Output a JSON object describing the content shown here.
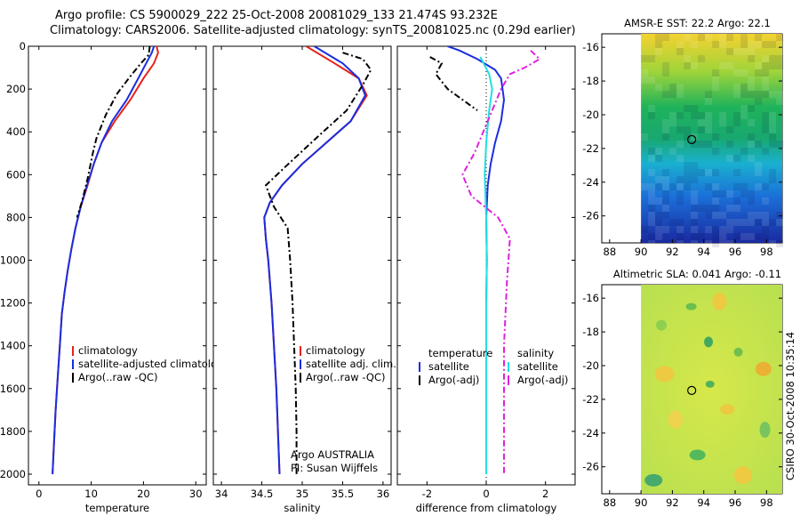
{
  "header": {
    "line1": "Argo profile: CS 5900029_222 25-Oct-2008 20081029_133 21.474S 93.232E",
    "line2": "Climatology: CARS2006. Satellite-adjusted climatology: synTS_20081025.nc (0.29d earlier)"
  },
  "footer_stamp": "CSIRO 30-Oct-2008 10:35:14",
  "credit": {
    "line1": "Argo AUSTRALIA",
    "line2": "PI: Susan Wijffels"
  },
  "colors": {
    "red": "#e8221a",
    "blue": "#1a2ee0",
    "black": "#000000",
    "magenta": "#e020e0",
    "cyan": "#20e0e0"
  },
  "chart_data": [
    {
      "type": "line",
      "xlabel": "temperature",
      "ylabel": "",
      "xlim": [
        -2,
        32
      ],
      "ylim": [
        2050,
        0
      ],
      "xticks": [
        0,
        10,
        20,
        30
      ],
      "yticks": [
        0,
        200,
        400,
        600,
        800,
        1000,
        1200,
        1400,
        1600,
        1800,
        2000
      ],
      "legend": [
        "climatology",
        "satellite-adjusted climatology",
        "Argo(..raw -QC)"
      ],
      "series": [
        {
          "name": "climatology",
          "color": "red",
          "points": [
            [
              22.5,
              0
            ],
            [
              22.8,
              30
            ],
            [
              22,
              80
            ],
            [
              20,
              150
            ],
            [
              17.5,
              250
            ],
            [
              14.5,
              350
            ],
            [
              12,
              450
            ],
            [
              10.5,
              550
            ],
            [
              9.3,
              650
            ],
            [
              8,
              750
            ],
            [
              7,
              850
            ],
            [
              6.2,
              950
            ],
            [
              5.5,
              1050
            ],
            [
              4.9,
              1150
            ],
            [
              4.4,
              1250
            ],
            [
              4,
              1400
            ],
            [
              3.6,
              1550
            ],
            [
              3.2,
              1700
            ],
            [
              2.9,
              1850
            ],
            [
              2.6,
              2000
            ]
          ]
        },
        {
          "name": "satellite-adjusted climatology",
          "color": "blue",
          "points": [
            [
              22,
              0
            ],
            [
              21.6,
              30
            ],
            [
              20.5,
              80
            ],
            [
              19,
              150
            ],
            [
              16.8,
              250
            ],
            [
              14,
              350
            ],
            [
              12,
              450
            ],
            [
              10.5,
              550
            ],
            [
              9.2,
              650
            ],
            [
              8,
              750
            ],
            [
              7,
              850
            ],
            [
              6.2,
              950
            ],
            [
              5.5,
              1050
            ],
            [
              4.9,
              1150
            ],
            [
              4.4,
              1250
            ],
            [
              4,
              1400
            ],
            [
              3.6,
              1550
            ],
            [
              3.2,
              1700
            ],
            [
              2.9,
              1850
            ],
            [
              2.6,
              2000
            ]
          ]
        },
        {
          "name": "Argo(..raw -QC)",
          "color": "black",
          "points": [
            [
              21.2,
              0
            ],
            [
              21,
              40
            ],
            [
              19.5,
              80
            ],
            [
              17.5,
              140
            ],
            [
              15,
              220
            ],
            [
              12.8,
              320
            ],
            [
              11,
              430
            ],
            [
              10.3,
              500
            ],
            [
              9.3,
              620
            ],
            [
              8.3,
              720
            ],
            [
              7.3,
              800
            ]
          ]
        }
      ]
    },
    {
      "type": "line",
      "xlabel": "salinity",
      "xlim": [
        33.9,
        36.1
      ],
      "ylim": [
        2050,
        0
      ],
      "xticks": [
        34,
        34.5,
        35,
        35.5,
        36
      ],
      "legend": [
        "climatology",
        "satellite adj. clim.",
        "Argo(..raw -QC)"
      ],
      "series": [
        {
          "name": "climatology",
          "color": "red",
          "points": [
            [
              35.05,
              0
            ],
            [
              35.4,
              80
            ],
            [
              35.7,
              150
            ],
            [
              35.8,
              230
            ],
            [
              35.6,
              350
            ],
            [
              35.3,
              450
            ],
            [
              35,
              550
            ],
            [
              34.75,
              650
            ],
            [
              34.6,
              730
            ],
            [
              34.53,
              800
            ],
            [
              34.55,
              900
            ],
            [
              34.58,
              1000
            ],
            [
              34.62,
              1200
            ],
            [
              34.65,
              1400
            ],
            [
              34.68,
              1600
            ],
            [
              34.7,
              1800
            ],
            [
              34.72,
              2000
            ]
          ]
        },
        {
          "name": "satellite adj. clim.",
          "color": "blue",
          "points": [
            [
              35.15,
              0
            ],
            [
              35.5,
              80
            ],
            [
              35.7,
              150
            ],
            [
              35.78,
              230
            ],
            [
              35.6,
              350
            ],
            [
              35.3,
              450
            ],
            [
              35,
              550
            ],
            [
              34.75,
              650
            ],
            [
              34.6,
              730
            ],
            [
              34.53,
              800
            ],
            [
              34.55,
              900
            ],
            [
              34.58,
              1000
            ],
            [
              34.62,
              1200
            ],
            [
              34.65,
              1400
            ],
            [
              34.68,
              1600
            ],
            [
              34.7,
              1800
            ],
            [
              34.72,
              2000
            ]
          ]
        },
        {
          "name": "Argo(..raw -QC)",
          "color": "black",
          "points": [
            [
              35.5,
              30
            ],
            [
              35.75,
              60
            ],
            [
              35.85,
              110
            ],
            [
              35.75,
              180
            ],
            [
              35.55,
              300
            ],
            [
              35.2,
              420
            ],
            [
              34.8,
              560
            ],
            [
              34.55,
              650
            ],
            [
              34.65,
              750
            ],
            [
              34.82,
              850
            ],
            [
              34.85,
              1000
            ],
            [
              34.88,
              1200
            ],
            [
              34.9,
              1400
            ],
            [
              34.92,
              1600
            ],
            [
              34.93,
              1800
            ],
            [
              34.93,
              2000
            ]
          ]
        }
      ]
    },
    {
      "type": "line",
      "xlabel": "difference from climatology",
      "xlim": [
        -3,
        3
      ],
      "ylim": [
        2050,
        0
      ],
      "xticks": [
        -2,
        0,
        2
      ],
      "legend": [
        "temperature",
        "satellite",
        "Argo(-adj)",
        "salinity",
        "satellite",
        "Argo(-adj)"
      ],
      "series": [
        {
          "name": "temperature satellite",
          "color": "blue",
          "points": [
            [
              -1.3,
              0
            ],
            [
              -0.9,
              20
            ],
            [
              -0.3,
              60
            ],
            [
              0.3,
              110
            ],
            [
              0.5,
              150
            ],
            [
              0.6,
              250
            ],
            [
              0.5,
              350
            ],
            [
              0.3,
              450
            ],
            [
              0.15,
              550
            ],
            [
              0.05,
              650
            ],
            [
              0,
              800
            ],
            [
              0.02,
              1000
            ],
            [
              0,
              1200
            ],
            [
              0,
              1400
            ],
            [
              0,
              1600
            ],
            [
              0,
              1800
            ],
            [
              0,
              2000
            ]
          ]
        },
        {
          "name": "temperature Argo(-adj)",
          "color": "black",
          "points": [
            [
              -1.9,
              50
            ],
            [
              -1.5,
              80
            ],
            [
              -1.7,
              130
            ],
            [
              -1.3,
              200
            ],
            [
              -0.8,
              250
            ],
            [
              -0.3,
              300
            ]
          ]
        },
        {
          "name": "salinity satellite",
          "color": "cyan",
          "points": [
            [
              -0.2,
              50
            ],
            [
              0.1,
              130
            ],
            [
              0.2,
              200
            ],
            [
              0.1,
              300
            ],
            [
              0,
              450
            ],
            [
              -0.05,
              600
            ],
            [
              0,
              800
            ],
            [
              0.02,
              1000
            ],
            [
              0,
              1200
            ],
            [
              0,
              1400
            ],
            [
              0,
              1600
            ],
            [
              0,
              1800
            ],
            [
              0,
              2000
            ]
          ]
        },
        {
          "name": "salinity Argo(-adj)",
          "color": "magenta",
          "points": [
            [
              1.5,
              20
            ],
            [
              1.8,
              60
            ],
            [
              1.3,
              100
            ],
            [
              0.8,
              130
            ],
            [
              0.5,
              200
            ],
            [
              0.2,
              300
            ],
            [
              -0.4,
              500
            ],
            [
              -0.8,
              600
            ],
            [
              -0.5,
              700
            ],
            [
              0.4,
              800
            ],
            [
              0.8,
              900
            ],
            [
              0.7,
              1100
            ],
            [
              0.6,
              1400
            ],
            [
              0.6,
              1700
            ],
            [
              0.6,
              2000
            ]
          ]
        }
      ]
    },
    {
      "type": "heatmap",
      "title": "AMSR-E SST: 22.2 Argo: 22.1",
      "xlim": [
        87.5,
        99
      ],
      "ylim": [
        -27.6,
        -15.2
      ],
      "xticks": [
        88,
        90,
        92,
        94,
        96,
        98
      ],
      "yticks": [
        -16,
        -18,
        -20,
        -22,
        -24,
        -26
      ],
      "marker": [
        93.232,
        -21.474
      ]
    },
    {
      "type": "heatmap",
      "title": "Altimetric SLA: 0.041 Argo: -0.11",
      "xlim": [
        87.5,
        99
      ],
      "ylim": [
        -27.6,
        -15.2
      ],
      "xticks": [
        88,
        90,
        92,
        94,
        96,
        98
      ],
      "yticks": [
        -16,
        -18,
        -20,
        -22,
        -24,
        -26
      ],
      "marker": [
        93.232,
        -21.474
      ]
    }
  ]
}
